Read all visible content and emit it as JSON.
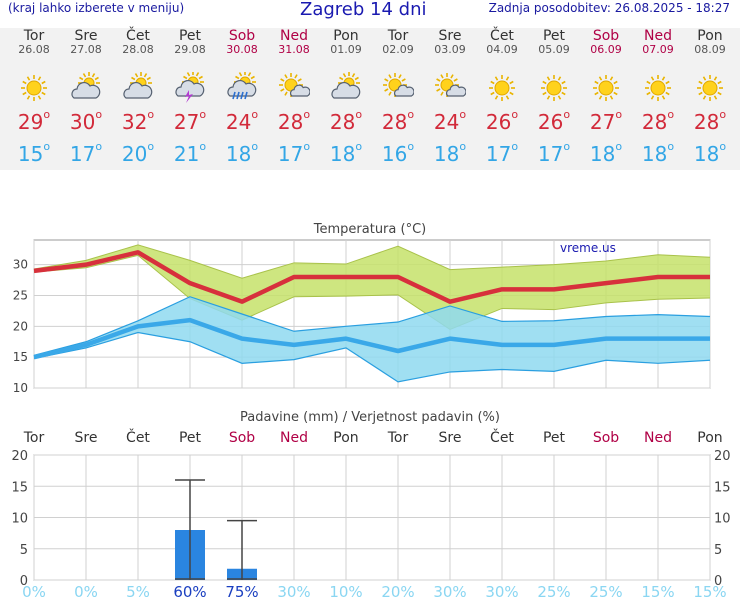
{
  "header": {
    "left_note": "(kraj lahko izberete v meniju)",
    "title": "Zagreb 14 dni",
    "updated": "Zadnja posodobitev: 26.08.2025 - 18:27"
  },
  "days": [
    {
      "name": "Tor",
      "date": "26.08",
      "weekend": false,
      "icon": "sun-icon",
      "max": "29",
      "min": "15"
    },
    {
      "name": "Sre",
      "date": "27.08",
      "weekend": false,
      "icon": "cloud-sun-icon",
      "max": "30",
      "min": "17"
    },
    {
      "name": "Čet",
      "date": "28.08",
      "weekend": false,
      "icon": "cloud-sun-icon",
      "max": "32",
      "min": "20"
    },
    {
      "name": "Pet",
      "date": "29.08",
      "weekend": false,
      "icon": "storm-sun-icon",
      "max": "27",
      "min": "21"
    },
    {
      "name": "Sob",
      "date": "30.08",
      "weekend": true,
      "icon": "rain-sun-icon",
      "max": "24",
      "min": "18"
    },
    {
      "name": "Ned",
      "date": "31.08",
      "weekend": true,
      "icon": "partly-sunny-icon",
      "max": "28",
      "min": "17"
    },
    {
      "name": "Pon",
      "date": "01.09",
      "weekend": false,
      "icon": "cloud-sun-icon",
      "max": "28",
      "min": "18"
    },
    {
      "name": "Tor",
      "date": "02.09",
      "weekend": false,
      "icon": "partly-sunny-icon",
      "max": "28",
      "min": "16"
    },
    {
      "name": "Sre",
      "date": "03.09",
      "weekend": false,
      "icon": "partly-sunny-icon",
      "max": "24",
      "min": "18"
    },
    {
      "name": "Čet",
      "date": "04.09",
      "weekend": false,
      "icon": "sun-icon",
      "max": "26",
      "min": "17"
    },
    {
      "name": "Pet",
      "date": "05.09",
      "weekend": false,
      "icon": "sun-icon",
      "max": "26",
      "min": "17"
    },
    {
      "name": "Sob",
      "date": "06.09",
      "weekend": true,
      "icon": "sun-icon",
      "max": "27",
      "min": "18"
    },
    {
      "name": "Ned",
      "date": "07.09",
      "weekend": true,
      "icon": "sun-icon",
      "max": "28",
      "min": "18"
    },
    {
      "name": "Pon",
      "date": "08.09",
      "weekend": false,
      "icon": "sun-icon",
      "max": "28",
      "min": "18"
    }
  ],
  "degree_symbol": "o",
  "chart_data": [
    {
      "type": "line",
      "title": "Temperatura (°C)",
      "watermark": "vreme.us",
      "x": [
        "26.08",
        "27.08",
        "28.08",
        "29.08",
        "30.08",
        "31.08",
        "01.09",
        "02.09",
        "03.09",
        "04.09",
        "05.09",
        "06.09",
        "07.09",
        "08.09"
      ],
      "ylim": [
        10,
        34
      ],
      "yticks": [
        10,
        15,
        20,
        25,
        30
      ],
      "grid": true,
      "series": [
        {
          "values": [
            29,
            30,
            32,
            27,
            24,
            28,
            28,
            28,
            24,
            26,
            26,
            27,
            28,
            28
          ],
          "color": "#d7303c"
        },
        {
          "values": [
            15,
            17,
            20,
            21,
            18,
            17,
            18,
            16,
            18,
            17,
            17,
            18,
            18,
            18
          ],
          "color": "#3aa8e8"
        }
      ],
      "max_range": {
        "upper": [
          29.3,
          30.7,
          33.2,
          30.7,
          27.8,
          30.3,
          30.1,
          33.0,
          29.2,
          29.6,
          30.0,
          30.6,
          31.6,
          31.2
        ],
        "lower": [
          28.8,
          29.5,
          31.5,
          24.5,
          21.0,
          24.8,
          24.9,
          25.1,
          19.5,
          22.9,
          22.7,
          23.8,
          24.4,
          24.6
        ],
        "color": "#c5e26a"
      },
      "min_range": {
        "upper": [
          15.3,
          17.5,
          20.9,
          24.8,
          22.0,
          19.2,
          20.0,
          20.7,
          23.3,
          20.8,
          20.9,
          21.6,
          21.9,
          21.6
        ],
        "lower": [
          14.8,
          16.5,
          19.0,
          17.5,
          14.0,
          14.6,
          16.5,
          11.0,
          12.6,
          13.0,
          12.7,
          14.5,
          14.0,
          14.5
        ],
        "color": "#8fd9f0"
      },
      "max_color": "#d7303c",
      "min_color": "#3aa8e8"
    },
    {
      "type": "bar",
      "title": "Padavine (mm) / Verjetnost padavin (%)",
      "categories": [
        "Tor",
        "Sre",
        "Čet",
        "Pet",
        "Sob",
        "Ned",
        "Pon",
        "Tor",
        "Sre",
        "Čet",
        "Pet",
        "Sob",
        "Ned",
        "Pon"
      ],
      "weekend": [
        false,
        false,
        false,
        false,
        true,
        true,
        false,
        false,
        false,
        false,
        false,
        true,
        true,
        false
      ],
      "values": [
        0,
        0,
        0,
        8,
        1.8,
        0,
        0,
        0,
        0,
        0,
        0,
        0,
        0,
        0
      ],
      "error_high": [
        null,
        null,
        null,
        16,
        9.5,
        null,
        null,
        null,
        null,
        null,
        null,
        null,
        null,
        null
      ],
      "error_low": [
        null,
        null,
        null,
        0,
        0,
        null,
        null,
        null,
        null,
        null,
        null,
        null,
        null,
        null
      ],
      "ylim": [
        0,
        20
      ],
      "yticks": [
        0,
        5,
        10,
        15,
        20
      ],
      "probability": [
        "0%",
        "0%",
        "5%",
        "60%",
        "75%",
        "30%",
        "10%",
        "20%",
        "30%",
        "30%",
        "25%",
        "25%",
        "15%",
        "15%"
      ],
      "probability_strong": [
        false,
        false,
        false,
        true,
        true,
        false,
        false,
        false,
        false,
        false,
        false,
        false,
        false,
        false
      ],
      "bar_color": "#2a85e0",
      "grid": true
    }
  ]
}
